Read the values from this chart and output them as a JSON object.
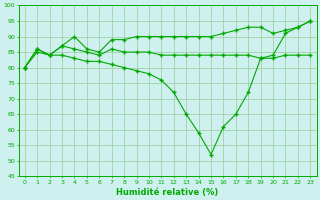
{
  "line1": {
    "x": [
      0,
      1,
      2,
      3,
      4,
      5,
      6,
      7,
      8,
      9,
      10,
      11,
      12,
      13,
      14,
      15,
      16,
      17,
      18,
      19,
      20,
      21,
      22,
      23
    ],
    "y": [
      80,
      86,
      84,
      87,
      90,
      86,
      85,
      89,
      89,
      90,
      90,
      90,
      90,
      90,
      90,
      90,
      91,
      92,
      93,
      93,
      91,
      92,
      93,
      95
    ]
  },
  "line2": {
    "x": [
      0,
      1,
      2,
      3,
      4,
      5,
      6,
      7,
      8,
      9,
      10,
      11,
      12,
      13,
      14,
      15,
      16,
      17,
      18,
      19,
      20,
      21,
      22,
      23
    ],
    "y": [
      80,
      85,
      84,
      87,
      86,
      85,
      84,
      86,
      85,
      85,
      85,
      84,
      84,
      84,
      84,
      84,
      84,
      84,
      84,
      83,
      83,
      84,
      84,
      84
    ]
  },
  "line3": {
    "x": [
      0,
      1,
      2,
      3,
      4,
      5,
      6,
      7,
      8,
      9,
      10,
      11,
      12,
      13,
      14,
      15,
      16,
      17,
      18,
      19,
      20,
      21,
      22,
      23
    ],
    "y": [
      80,
      86,
      84,
      84,
      83,
      82,
      82,
      81,
      80,
      79,
      78,
      76,
      72,
      65,
      59,
      52,
      61,
      65,
      72,
      83,
      84,
      91,
      93,
      95
    ]
  },
  "ylim": [
    45,
    100
  ],
  "xlim": [
    -0.5,
    23.5
  ],
  "yticks": [
    45,
    50,
    55,
    60,
    65,
    70,
    75,
    80,
    85,
    90,
    95,
    100
  ],
  "xticks": [
    0,
    1,
    2,
    3,
    4,
    5,
    6,
    7,
    8,
    9,
    10,
    11,
    12,
    13,
    14,
    15,
    16,
    17,
    18,
    19,
    20,
    21,
    22,
    23
  ],
  "xlabel": "Humidité relative (%)",
  "line_color": "#00aa00",
  "bg_color": "#cef0ee",
  "grid_color": "#99cc99"
}
